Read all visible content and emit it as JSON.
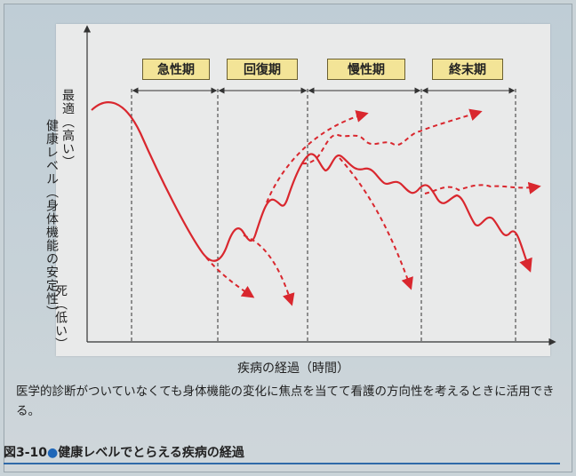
{
  "diagram": {
    "y_top_label": "最適（高い）",
    "y_axis_label": "健康レベル（身体機能の安定性）",
    "y_bottom_label": "死（低い）",
    "x_axis_label": "疾病の経過（時間）",
    "phases": [
      {
        "name": "急性期"
      },
      {
        "name": "回復期"
      },
      {
        "name": "慢性期"
      },
      {
        "name": "終末期"
      }
    ],
    "line_colors": {
      "main": "#d9272e",
      "dashed": "#d9272e",
      "axis": "#333333"
    }
  },
  "caption": "医学的診断がついていなくても身体機能の変化に焦点を当てて看護の方向性を考えるときに活用できる。",
  "figure_title": {
    "number": "図3-10",
    "text": "健康レベルでとらえる疾病の経過"
  }
}
